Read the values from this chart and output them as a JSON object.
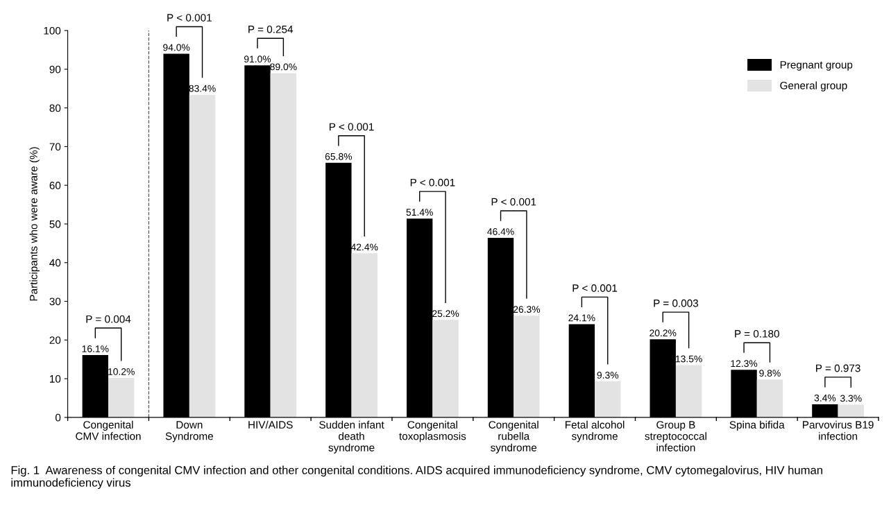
{
  "chart_data": {
    "type": "bar",
    "ylabel": "Participants who were aware (%)",
    "categories": [
      "Congenital\nCMV infection",
      "Down\nSyndrome",
      "HIV/AIDS",
      "Sudden infant\ndeath\nsyndrome",
      "Congenital\ntoxoplasmosis",
      "Congenital\nrubella\nsyndrome",
      "Fetal alcohol\nsyndrome",
      "Group B\nstreptococcal\ninfection",
      "Spina bifida",
      "Parvovirus B19\ninfection"
    ],
    "series": [
      {
        "name": "Pregnant group",
        "color": "#000000",
        "values": [
          16.1,
          94.0,
          91.0,
          65.8,
          51.4,
          46.4,
          24.1,
          20.2,
          12.3,
          3.4
        ],
        "value_labels": [
          "16.1%",
          "94.0%",
          "91.0%",
          "65.8%",
          "51.4%",
          "46.4%",
          "24.1%",
          "20.2%",
          "12.3%",
          "3.4%"
        ]
      },
      {
        "name": "General group",
        "color": "#e3e3e3",
        "values": [
          10.2,
          83.4,
          89.0,
          42.4,
          25.2,
          26.3,
          9.3,
          13.5,
          9.8,
          3.3
        ],
        "value_labels": [
          "10.2%",
          "83.4%",
          "89.0%",
          "42.4%",
          "25.2%",
          "26.3%",
          "9.3%",
          "13.5%",
          "9.8%",
          "3.3%"
        ]
      }
    ],
    "ylim": [
      0,
      100
    ],
    "yticks": [
      0,
      10,
      20,
      30,
      40,
      50,
      60,
      70,
      80,
      90,
      100
    ],
    "grid": false,
    "legend": "top right",
    "annotations": [
      "P = 0.004",
      "P < 0.001",
      "P = 0.254",
      "P < 0.001",
      "P < 0.001",
      "P < 0.001",
      "P < 0.001",
      "P = 0.003",
      "P = 0.180",
      "P = 0.973",
      "Fig. 1  Awareness of congenital CMV infection and other congenital conditions. AIDS acquired immunodeficiency syndrome, CMV cytomegalovirus, HIV human immunodeficiency virus"
    ]
  }
}
